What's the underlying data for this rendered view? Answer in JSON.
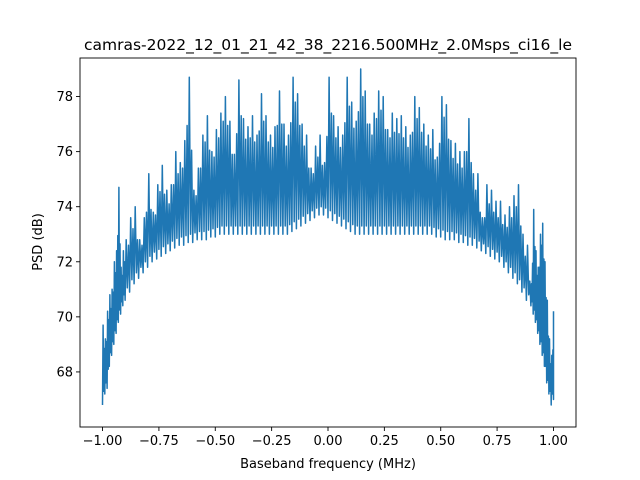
{
  "chart_data": {
    "type": "line",
    "title": "camras-2022_12_01_21_42_38_2216.500MHz_2.0Msps_ci16_le",
    "xlabel": "Baseband frequency (MHz)",
    "ylabel": "PSD (dB)",
    "xlim": [
      -1.1,
      1.1
    ],
    "ylim": [
      66.0,
      79.4
    ],
    "xticks": [
      -1.0,
      -0.75,
      -0.5,
      -0.25,
      0.0,
      0.25,
      0.5,
      0.75,
      1.0
    ],
    "xtick_labels": [
      "−1.00",
      "−0.75",
      "−0.50",
      "−0.25",
      "0.00",
      "0.25",
      "0.50",
      "0.75",
      "1.00"
    ],
    "yticks": [
      68,
      70,
      72,
      74,
      76,
      78
    ],
    "ytick_labels": [
      "68",
      "70",
      "72",
      "74",
      "76",
      "78"
    ],
    "grid": false,
    "series": [
      {
        "color": "#1f77b4",
        "x": [
          -1.0,
          -0.99,
          -0.98,
          -0.97,
          -0.96,
          -0.95,
          -0.94,
          -0.93,
          -0.92,
          -0.91,
          -0.9,
          -0.88,
          -0.86,
          -0.84,
          -0.82,
          -0.8,
          -0.78,
          -0.76,
          -0.74,
          -0.72,
          -0.7,
          -0.68,
          -0.66,
          -0.64,
          -0.62,
          -0.6,
          -0.58,
          -0.56,
          -0.54,
          -0.52,
          -0.5,
          -0.48,
          -0.46,
          -0.44,
          -0.42,
          -0.4,
          -0.38,
          -0.36,
          -0.34,
          -0.32,
          -0.3,
          -0.28,
          -0.26,
          -0.24,
          -0.22,
          -0.2,
          -0.18,
          -0.16,
          -0.14,
          -0.12,
          -0.1,
          -0.08,
          -0.06,
          -0.04,
          -0.02,
          0.0,
          0.02,
          0.04,
          0.06,
          0.08,
          0.1,
          0.12,
          0.14,
          0.16,
          0.18,
          0.2,
          0.22,
          0.24,
          0.26,
          0.28,
          0.3,
          0.32,
          0.34,
          0.36,
          0.38,
          0.4,
          0.42,
          0.44,
          0.46,
          0.48,
          0.5,
          0.52,
          0.54,
          0.56,
          0.58,
          0.6,
          0.62,
          0.64,
          0.66,
          0.68,
          0.7,
          0.72,
          0.74,
          0.76,
          0.78,
          0.8,
          0.82,
          0.84,
          0.86,
          0.88,
          0.9,
          0.91,
          0.92,
          0.93,
          0.94,
          0.95,
          0.96,
          0.97,
          0.98,
          0.99,
          1.0
        ],
        "y_low": [
          66.8,
          67.2,
          67.4,
          68.2,
          68.6,
          69.0,
          69.4,
          69.8,
          70.1,
          70.4,
          70.6,
          70.9,
          71.2,
          71.4,
          71.6,
          71.8,
          72.0,
          72.1,
          72.2,
          72.3,
          72.4,
          72.5,
          72.6,
          72.6,
          72.7,
          72.7,
          72.8,
          72.8,
          72.8,
          72.9,
          72.9,
          73.0,
          73.0,
          73.0,
          73.0,
          73.0,
          73.0,
          73.0,
          73.0,
          73.0,
          73.0,
          73.0,
          73.0,
          73.0,
          73.0,
          73.0,
          73.0,
          73.1,
          73.2,
          73.3,
          73.4,
          73.5,
          73.6,
          73.7,
          73.7,
          73.6,
          73.5,
          73.4,
          73.3,
          73.2,
          73.1,
          73.0,
          73.0,
          73.0,
          73.0,
          73.0,
          73.0,
          73.0,
          73.0,
          73.0,
          73.0,
          73.0,
          73.0,
          73.0,
          73.0,
          73.0,
          73.0,
          73.0,
          73.0,
          72.9,
          72.9,
          72.8,
          72.8,
          72.8,
          72.7,
          72.7,
          72.6,
          72.6,
          72.5,
          72.4,
          72.3,
          72.2,
          72.1,
          72.0,
          71.8,
          71.6,
          71.4,
          71.2,
          70.9,
          70.6,
          70.4,
          70.1,
          69.8,
          69.4,
          69.0,
          68.6,
          68.2,
          67.6,
          67.2,
          66.8,
          67.0
        ],
        "y_high": [
          69.7,
          69.2,
          70.2,
          70.8,
          71.0,
          72.0,
          72.4,
          74.7,
          71.8,
          72.4,
          72.8,
          73.6,
          74.0,
          72.8,
          73.6,
          75.2,
          73.8,
          74.8,
          75.5,
          74.6,
          74.8,
          76.0,
          75.6,
          76.4,
          78.7,
          74.6,
          75.4,
          76.6,
          77.3,
          76.0,
          76.8,
          77.4,
          78.0,
          77.1,
          75.9,
          78.6,
          77.2,
          76.9,
          77.3,
          76.6,
          78.1,
          77.3,
          76.6,
          76.9,
          78.2,
          77.0,
          76.6,
          78.7,
          78.1,
          77.0,
          76.6,
          75.4,
          76.2,
          76.6,
          75.6,
          78.7,
          77.3,
          76.9,
          76.6,
          78.7,
          77.8,
          77.1,
          79.0,
          78.2,
          77.0,
          77.4,
          78.2,
          78.0,
          76.8,
          77.4,
          77.2,
          77.3,
          76.9,
          76.6,
          78.0,
          77.6,
          77.0,
          76.6,
          76.8,
          75.8,
          78.0,
          77.7,
          76.4,
          76.3,
          76.0,
          76.0,
          77.2,
          75.2,
          75.2,
          73.6,
          74.8,
          74.6,
          74.2,
          74.2,
          73.7,
          74.0,
          74.4,
          74.8,
          73.0,
          72.6,
          71.2,
          73.9,
          72.4,
          71.8,
          73.0,
          73.4,
          72.0,
          70.6,
          69.2,
          68.6,
          70.2
        ]
      }
    ]
  }
}
